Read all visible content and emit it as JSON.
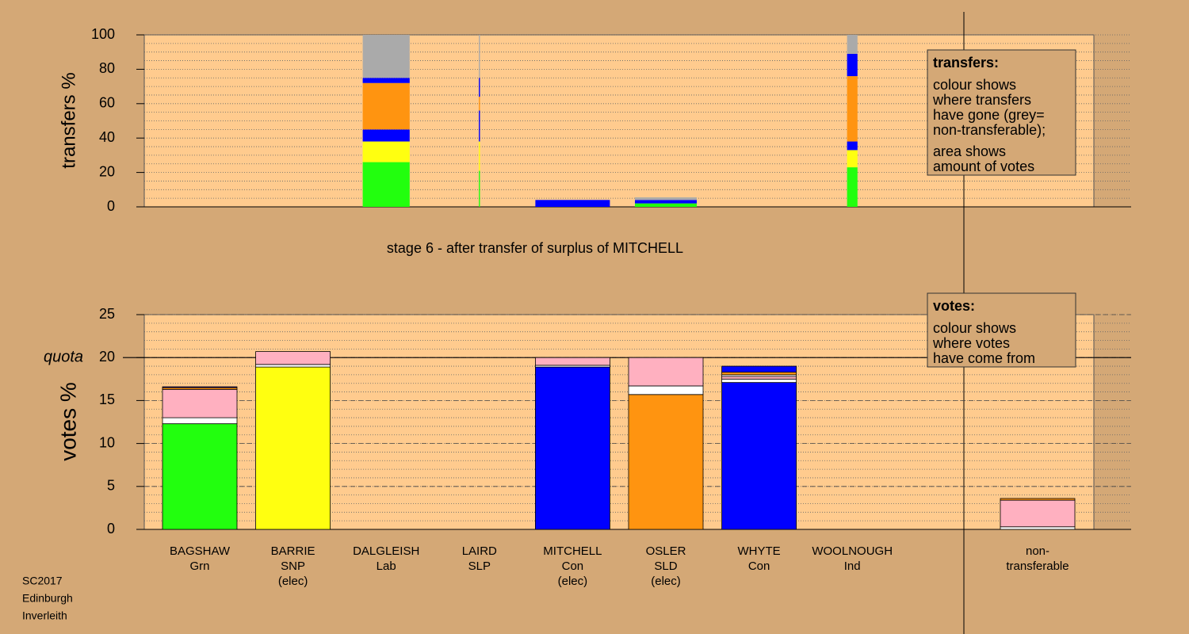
{
  "chart_data": [
    {
      "type": "variable-width-stacked-bar",
      "title": "stage 6 - after transfer of surplus of MITCHELL",
      "ylabel": "transfers %",
      "ylim": [
        0,
        100
      ],
      "yticks": [
        0,
        20,
        40,
        60,
        80,
        100
      ],
      "grid_step": 5,
      "legend": {
        "title": "transfers:",
        "paragraphs": [
          [
            "colour shows",
            "where transfers",
            "have gone (grey=",
            "non-transferable);"
          ],
          [
            "area shows",
            "amount of votes"
          ]
        ]
      },
      "stacks": [
        null,
        null,
        {
          "amount": 0.63,
          "segments": [
            {
              "color": "#22ff0e",
              "value": 26
            },
            {
              "color": "#ffff10",
              "value": 12
            },
            {
              "color": "#0000ff",
              "value": 7
            },
            {
              "color": "#ff9410",
              "value": 27
            },
            {
              "color": "#0000ff",
              "value": 3
            },
            {
              "color": "#aaaaaa",
              "value": 25
            }
          ]
        },
        {
          "amount": 0.015,
          "segments": [
            {
              "color": "#22ff0e",
              "value": 21
            },
            {
              "color": "#ffff10",
              "value": 17
            },
            {
              "color": "#0000ff",
              "value": 18
            },
            {
              "color": "#ff9410",
              "value": 8
            },
            {
              "color": "#0000ff",
              "value": 11
            },
            {
              "color": "#aaaaaa",
              "value": 25
            }
          ]
        },
        {
          "amount": 1.0,
          "segments": [
            {
              "color": "#0000ff",
              "value": 4
            }
          ]
        },
        {
          "amount": 0.83,
          "segments": [
            {
              "color": "#22ff0e",
              "value": 2
            },
            {
              "color": "#0000ff",
              "value": 2
            },
            {
              "color": "#aaaaaa",
              "value": 1.5
            }
          ]
        },
        null,
        {
          "amount": 0.14,
          "segments": [
            {
              "color": "#22ff0e",
              "value": 23
            },
            {
              "color": "#ffff10",
              "value": 10
            },
            {
              "color": "#0000ff",
              "value": 5
            },
            {
              "color": "#ff9410",
              "value": 38
            },
            {
              "color": "#0000ff",
              "value": 13
            },
            {
              "color": "#aaaaaa",
              "value": 11
            }
          ]
        },
        null
      ]
    },
    {
      "type": "stacked-bar",
      "ylabel": "votes %",
      "ylim": [
        0,
        25
      ],
      "yticks": [
        0,
        5,
        10,
        15,
        20,
        25
      ],
      "grid_step": 1,
      "quota": 20,
      "quota_label": "quota",
      "legend": {
        "title": "votes:",
        "paragraphs": [
          [
            "colour shows",
            "where votes",
            "have come from"
          ]
        ]
      },
      "categories": [
        [
          "BAGSHAW",
          "Grn"
        ],
        [
          "BARRIE",
          "SNP",
          "(elec)"
        ],
        [
          "DALGLEISH",
          "Lab"
        ],
        [
          "LAIRD",
          "SLP"
        ],
        [
          "MITCHELL",
          "Con",
          "(elec)"
        ],
        [
          "OSLER",
          "SLD",
          "(elec)"
        ],
        [
          "WHYTE",
          "Con"
        ],
        [
          "WOOLNOUGH",
          "Ind"
        ],
        [
          "non-",
          "transferable"
        ]
      ],
      "stacks": [
        [
          {
            "color": "#22ff0e",
            "value": 12.3
          },
          {
            "color": "#ffffff",
            "value": 0.7
          },
          {
            "color": "#ffb0c0",
            "value": 3.3
          },
          {
            "color": "#ff9410",
            "value": 0.2
          },
          {
            "color": "#0000ff",
            "value": 0.1
          }
        ],
        [
          {
            "color": "#ffff10",
            "value": 18.9
          },
          {
            "color": "#ffffff",
            "value": 0.3
          },
          {
            "color": "#ffb0c0",
            "value": 1.5
          }
        ],
        [],
        [],
        [
          {
            "color": "#0000ff",
            "value": 18.9
          },
          {
            "color": "#ffffff",
            "value": 0.2
          },
          {
            "color": "#ffb0c0",
            "value": 0.9
          }
        ],
        [
          {
            "color": "#ff9410",
            "value": 15.7
          },
          {
            "color": "#ffffff",
            "value": 1.0
          },
          {
            "color": "#ffb0c0",
            "value": 3.3
          }
        ],
        [
          {
            "color": "#0000ff",
            "value": 17.1
          },
          {
            "color": "#ffffff",
            "value": 0.4
          },
          {
            "color": "#ffb0c0",
            "value": 0.3
          },
          {
            "color": "#ffffff",
            "value": 0.2
          },
          {
            "color": "#ff9410",
            "value": 0.3
          },
          {
            "color": "#0000ff",
            "value": 0.7
          }
        ],
        [],
        [
          {
            "color": "#ffffff",
            "value": 0.3
          },
          {
            "color": "#ffb0c0",
            "value": 3.1
          },
          {
            "color": "#ff9410",
            "value": 0.2
          }
        ]
      ]
    }
  ],
  "footer": [
    "SC2017",
    "Edinburgh",
    "Inverleith"
  ]
}
